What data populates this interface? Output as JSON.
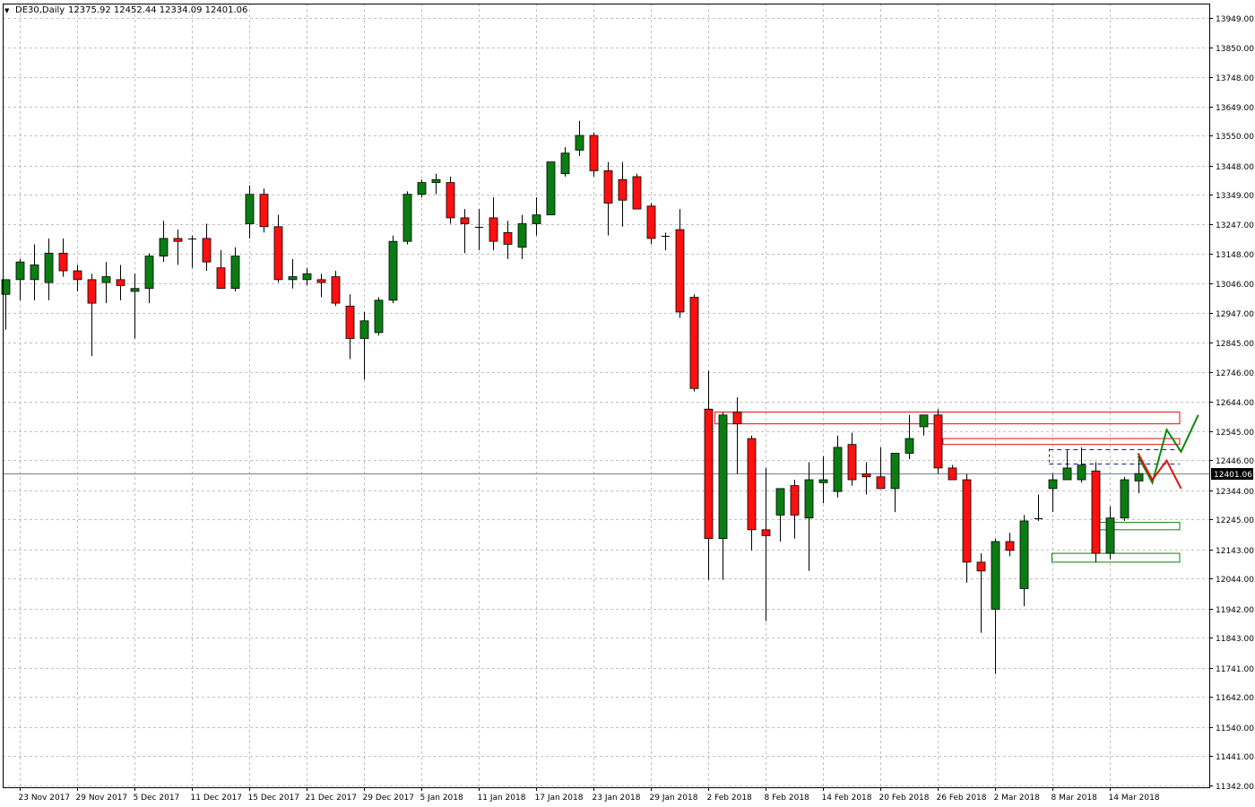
{
  "chart_header": {
    "menu_glyph": "▼",
    "symbol": "DE30,Daily",
    "ohlc": "12375.92 12452.44 12334.09 12401.06"
  },
  "colors": {
    "background": "#ffffff",
    "grid": "#c0c0c0",
    "bull": "#0a7d12",
    "bear": "#ff1010",
    "candle_border": "#000000",
    "current_price_line": "#708090",
    "zone_red": "#e01010",
    "zone_green": "#108010",
    "dash_blue": "#1a1aa0",
    "proj_up": "#0a8a0a",
    "proj_down": "#e01010"
  },
  "chart_data": {
    "type": "candlestick",
    "title": "DE30,Daily",
    "ylim": [
      11335,
      13998
    ],
    "y_ticks": [
      "13949.00",
      "13850.00",
      "13748.00",
      "13649.00",
      "13550.00",
      "13448.00",
      "13349.00",
      "13247.00",
      "13148.00",
      "13046.00",
      "12947.00",
      "12845.00",
      "12746.00",
      "12644.00",
      "12545.00",
      "12446.00",
      "12344.00",
      "12245.00",
      "12143.00",
      "12044.00",
      "11942.00",
      "11843.00",
      "11741.00",
      "11642.00",
      "11540.00",
      "11441.00",
      "11342.00"
    ],
    "x_ticks": [
      {
        "label": "23 Nov 2017",
        "index": 1
      },
      {
        "label": "29 Nov 2017",
        "index": 5
      },
      {
        "label": "5 Dec 2017",
        "index": 9
      },
      {
        "label": "11 Dec 2017",
        "index": 13
      },
      {
        "label": "15 Dec 2017",
        "index": 17
      },
      {
        "label": "21 Dec 2017",
        "index": 21
      },
      {
        "label": "29 Dec 2017",
        "index": 25
      },
      {
        "label": "5 Jan 2018",
        "index": 29
      },
      {
        "label": "11 Jan 2018",
        "index": 33
      },
      {
        "label": "17 Jan 2018",
        "index": 37
      },
      {
        "label": "23 Jan 2018",
        "index": 41
      },
      {
        "label": "29 Jan 2018",
        "index": 45
      },
      {
        "label": "2 Feb 2018",
        "index": 49
      },
      {
        "label": "8 Feb 2018",
        "index": 53
      },
      {
        "label": "14 Feb 2018",
        "index": 57
      },
      {
        "label": "20 Feb 2018",
        "index": 61
      },
      {
        "label": "26 Feb 2018",
        "index": 65
      },
      {
        "label": "2 Mar 2018",
        "index": 69
      },
      {
        "label": "8 Mar 2018",
        "index": 73
      },
      {
        "label": "14 Mar 2018",
        "index": 77
      }
    ],
    "current_price": "12401.06",
    "current_price_value": 12401.06,
    "candles": [
      [
        13010,
        13060,
        12890,
        13060
      ],
      [
        13060,
        13130,
        12990,
        13120
      ],
      [
        13060,
        13180,
        12990,
        13110
      ],
      [
        13050,
        13200,
        12990,
        13150
      ],
      [
        13150,
        13200,
        13070,
        13090
      ],
      [
        13090,
        13110,
        13020,
        13060
      ],
      [
        13060,
        13080,
        12800,
        12980
      ],
      [
        13050,
        13120,
        12980,
        13070
      ],
      [
        13060,
        13110,
        12990,
        13040
      ],
      [
        13020,
        13080,
        12860,
        13030
      ],
      [
        13030,
        13150,
        12980,
        13140
      ],
      [
        13140,
        13260,
        13120,
        13200
      ],
      [
        13200,
        13230,
        13110,
        13190
      ],
      [
        13200,
        13210,
        13100,
        13200
      ],
      [
        13200,
        13250,
        13090,
        13120
      ],
      [
        13100,
        13160,
        13040,
        13030
      ],
      [
        13030,
        13170,
        13020,
        13140
      ],
      [
        13250,
        13380,
        13200,
        13350
      ],
      [
        13350,
        13370,
        13220,
        13240
      ],
      [
        13240,
        13280,
        13050,
        13060
      ],
      [
        13060,
        13130,
        13030,
        13070
      ],
      [
        13060,
        13100,
        13040,
        13080
      ],
      [
        13060,
        13080,
        13000,
        13050
      ],
      [
        13070,
        13090,
        12970,
        12980
      ],
      [
        12970,
        13010,
        12790,
        12860
      ],
      [
        12860,
        12950,
        12720,
        12920
      ],
      [
        12880,
        13000,
        12870,
        12990
      ],
      [
        12990,
        13210,
        12980,
        13190
      ],
      [
        13190,
        13360,
        13180,
        13350
      ],
      [
        13350,
        13400,
        13340,
        13390
      ],
      [
        13390,
        13420,
        13350,
        13400
      ],
      [
        13390,
        13410,
        13250,
        13270
      ],
      [
        13270,
        13300,
        13150,
        13250
      ],
      [
        13240,
        13300,
        13160,
        13240
      ],
      [
        13270,
        13340,
        13160,
        13190
      ],
      [
        13220,
        13260,
        13130,
        13180
      ],
      [
        13170,
        13280,
        13130,
        13250
      ],
      [
        13250,
        13340,
        13210,
        13280
      ],
      [
        13280,
        13460,
        13280,
        13460
      ],
      [
        13420,
        13510,
        13410,
        13490
      ],
      [
        13500,
        13600,
        13480,
        13550
      ],
      [
        13550,
        13560,
        13410,
        13430
      ],
      [
        13430,
        13460,
        13210,
        13320
      ],
      [
        13400,
        13460,
        13240,
        13330
      ],
      [
        13410,
        13420,
        13300,
        13300
      ],
      [
        13310,
        13320,
        13180,
        13200
      ],
      [
        13210,
        13220,
        13160,
        13210
      ],
      [
        13230,
        13300,
        12930,
        12950
      ],
      [
        13000,
        13010,
        12680,
        12690
      ],
      [
        12620,
        12750,
        12040,
        12180
      ],
      [
        12180,
        12610,
        12040,
        12600
      ],
      [
        12610,
        12660,
        12400,
        12570
      ],
      [
        12520,
        12530,
        12140,
        12210
      ],
      [
        12210,
        12420,
        11900,
        12190
      ],
      [
        12260,
        12350,
        12170,
        12350
      ],
      [
        12360,
        12380,
        12180,
        12260
      ],
      [
        12250,
        12440,
        12070,
        12380
      ],
      [
        12370,
        12460,
        12300,
        12380
      ],
      [
        12340,
        12530,
        12320,
        12490
      ],
      [
        12500,
        12540,
        12360,
        12380
      ],
      [
        12400,
        12440,
        12330,
        12390
      ],
      [
        12390,
        12490,
        12350,
        12350
      ],
      [
        12350,
        12470,
        12270,
        12470
      ],
      [
        12470,
        12600,
        12450,
        12520
      ],
      [
        12560,
        12600,
        12530,
        12600
      ],
      [
        12600,
        12620,
        12400,
        12420
      ],
      [
        12420,
        12430,
        12380,
        12380
      ],
      [
        12380,
        12400,
        12030,
        12100
      ],
      [
        12100,
        12130,
        11860,
        12070
      ],
      [
        11940,
        12180,
        11720,
        12170
      ],
      [
        12170,
        12200,
        12120,
        12140
      ],
      [
        12010,
        12260,
        11950,
        12240
      ],
      [
        12250,
        12330,
        12240,
        12250
      ],
      [
        12350,
        12400,
        12270,
        12380
      ],
      [
        12380,
        12480,
        12380,
        12420
      ],
      [
        12380,
        12490,
        12370,
        12430
      ],
      [
        12410,
        12440,
        12100,
        12130
      ],
      [
        12130,
        12290,
        12110,
        12250
      ],
      [
        12250,
        12390,
        12240,
        12380
      ],
      [
        12375.92,
        12452.44,
        12334.09,
        12401.06
      ]
    ],
    "zones": [
      {
        "color": "red",
        "x_from": 49.5,
        "y_top": 12610,
        "y_bottom": 12570
      },
      {
        "color": "red",
        "x_from": 65.4,
        "y_top": 12520,
        "y_bottom": 12500
      },
      {
        "color": "green",
        "x_from": 76.3,
        "y_top": 12235,
        "y_bottom": 12210
      },
      {
        "color": "green",
        "x_from": 73.0,
        "y_top": 12130,
        "y_bottom": 12100
      }
    ],
    "dashed_levels": [
      {
        "x_from": 72.8,
        "y": 12485
      },
      {
        "x_from": 72.8,
        "y": 12435
      }
    ],
    "dashed_verticals": [
      {
        "x": 72.8,
        "y_from": 12485,
        "y_to": 12435
      }
    ],
    "projections": [
      {
        "color": "up",
        "points": [
          [
            79.0,
            12460
          ],
          [
            80.0,
            12370
          ],
          [
            81.0,
            12550
          ],
          [
            82.0,
            12475
          ],
          [
            83.2,
            12600
          ]
        ]
      },
      {
        "color": "down",
        "points": [
          [
            79.0,
            12470
          ],
          [
            80.0,
            12380
          ],
          [
            81.0,
            12445
          ],
          [
            82.0,
            12350
          ]
        ]
      }
    ]
  }
}
